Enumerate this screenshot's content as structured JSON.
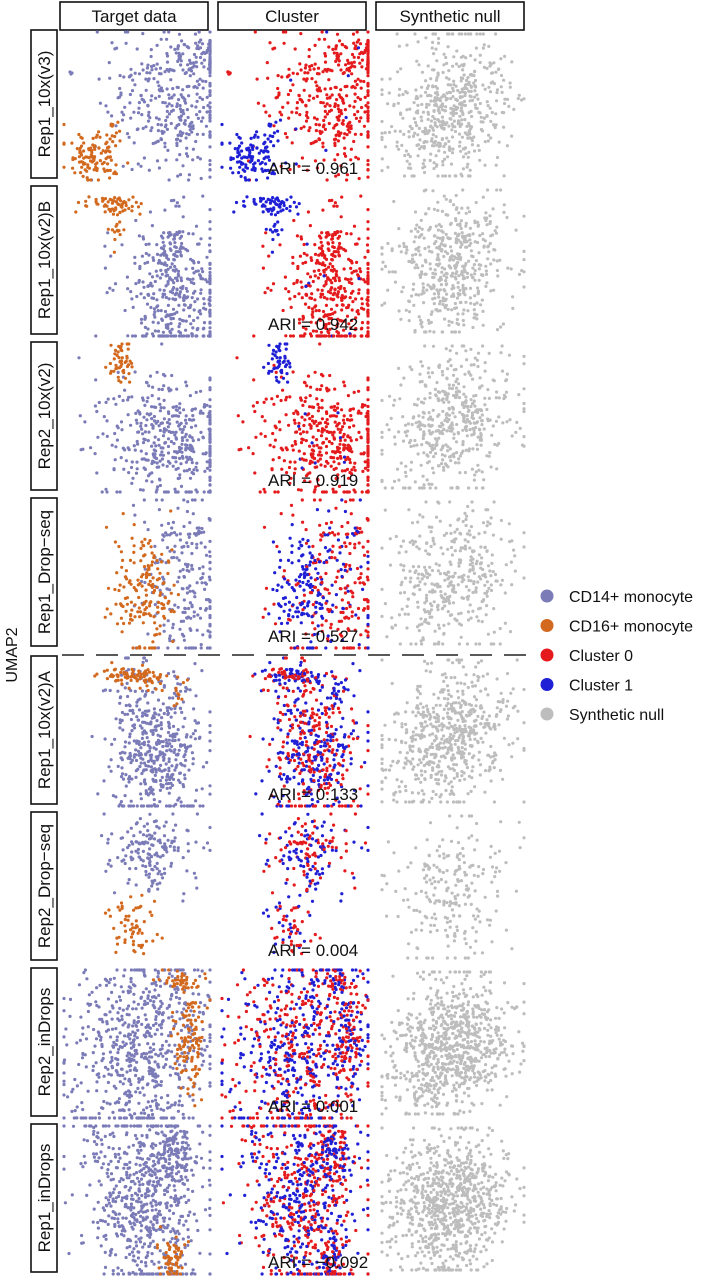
{
  "chart_data": {
    "type": "scatter",
    "axis_label_y": "UMAP2",
    "panel_columns": [
      "Target data",
      "Cluster",
      "Synthetic null"
    ],
    "rows": [
      {
        "label": "Rep1_10x(v3)",
        "ari": "ARI = 0.961"
      },
      {
        "label": "Rep1_10x(v2)B",
        "ari": "ARI = 0.942"
      },
      {
        "label": "Rep2_10x(v2)",
        "ari": "ARI = 0.919"
      },
      {
        "label": "Rep1_Drop−seq",
        "ari": "ARI = 0.527"
      },
      {
        "label": "Rep1_10x(v2)A",
        "ari": "ARI = 0.133"
      },
      {
        "label": "Rep2_Drop−seq",
        "ari": "ARI = 0.004"
      },
      {
        "label": "Rep2_inDrops",
        "ari": "ARI = 0.001"
      },
      {
        "label": "Rep1_inDrops",
        "ari": "ARI = −0.092"
      }
    ],
    "legend": [
      {
        "label": "CD14+ monocyte",
        "color": "#7b7bb8"
      },
      {
        "label": "CD16+ monocyte",
        "color": "#d2691e"
      },
      {
        "label": "Cluster 0",
        "color": "#e41a1c"
      },
      {
        "label": "Cluster 1",
        "color": "#1f1fd6"
      },
      {
        "label": "Synthetic null",
        "color": "#bdbdbd"
      }
    ],
    "divider": "dashed line between Rep1_Drop−seq and Rep1_10x(v2)A",
    "grid": false
  }
}
